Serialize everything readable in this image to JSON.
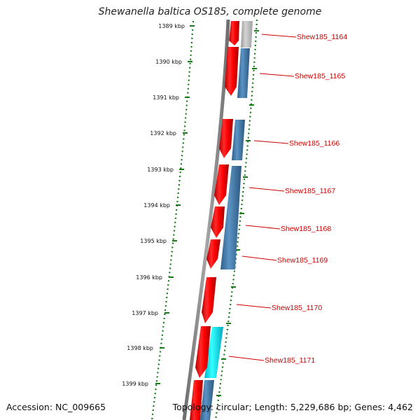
{
  "map": {
    "title": "Shewanella baltica OS185, complete genome",
    "accession": "Accession: NC_009665",
    "summary": "Topology: circular; Length: 5,229,686 bp; Genes: 4,462"
  },
  "ticks": [
    "1389 kbp",
    "1390 kbp",
    "1391 kbp",
    "1392 kbp",
    "1393 kbp",
    "1394 kbp",
    "1395 kbp",
    "1396 kbp",
    "1397 kbp",
    "1398 kbp",
    "1399 kbp"
  ],
  "genes": [
    "Shew185_1164",
    "Shew185_1165",
    "Shew185_1166",
    "Shew185_1167",
    "Shew185_1168",
    "Shew185_1169",
    "Shew185_1170",
    "Shew185_1171"
  ],
  "colors": {
    "cds": "#ff0000",
    "gene_blue": "#4682b4",
    "gene_cyan": "#00e5ff",
    "gene_gray": "#b0b0b0",
    "backbone": "#8c8c8c",
    "tick": "#1a7a1a",
    "label": "#cc0000"
  }
}
